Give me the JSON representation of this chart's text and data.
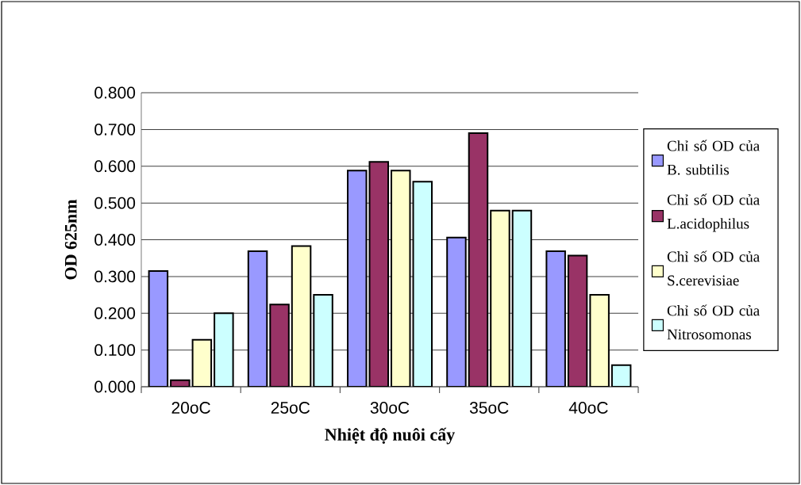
{
  "chart_data": {
    "type": "bar",
    "xlabel": "Nhiệt độ nuôi cấy",
    "ylabel": "OD 625nm",
    "categories": [
      "20oC",
      "25oC",
      "30oC",
      "35oC",
      "40oC"
    ],
    "series": [
      {
        "name": "Chỉ số OD của B. subtilis",
        "color": "#9999ff",
        "values": [
          0.315,
          0.369,
          0.588,
          0.406,
          0.369
        ]
      },
      {
        "name": "Chỉ số OD của L.acidophilus",
        "color": "#993366",
        "values": [
          0.018,
          0.224,
          0.612,
          0.69,
          0.357
        ]
      },
      {
        "name": "Chỉ số OD của S.cerevisiae",
        "color": "#ffffcc",
        "values": [
          0.128,
          0.383,
          0.588,
          0.479,
          0.25
        ]
      },
      {
        "name": "Chỉ số OD của Nitrosomonas",
        "color": "#ccffff",
        "values": [
          0.2,
          0.25,
          0.558,
          0.479,
          0.059
        ]
      }
    ],
    "ylim": [
      0,
      0.8
    ],
    "yticks": [
      {
        "value": 0,
        "label": "0.000"
      },
      {
        "value": 0.1,
        "label": "0.100"
      },
      {
        "value": 0.2,
        "label": "0.200"
      },
      {
        "value": 0.3,
        "label": "0.300"
      },
      {
        "value": 0.4,
        "label": "0.400"
      },
      {
        "value": 0.5,
        "label": "0.500"
      },
      {
        "value": 0.6,
        "label": "0.600"
      },
      {
        "value": 0.7,
        "label": "0.700"
      },
      {
        "value": 0.8,
        "label": "0.800"
      }
    ],
    "grid": "y",
    "legend": "right"
  }
}
